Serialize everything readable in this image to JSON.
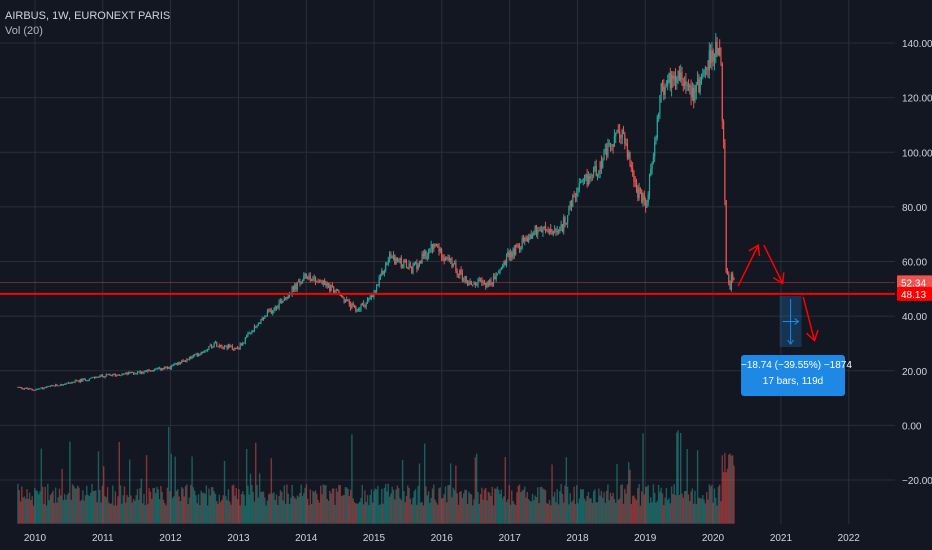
{
  "header": {
    "symbol_line": "AIRBUS, 1W, EURONEXT PARIS",
    "volume_line": "Vol (20)"
  },
  "measure_tooltip": {
    "line1": "−18.74 (−39.55%) −1874",
    "line2": "17 bars, 119d"
  },
  "colors": {
    "background": "#131722",
    "grid": "#2a2e39",
    "up": "#26a69a",
    "down": "#ef5350",
    "annotation": "#ff0000",
    "measure": "#1e88e5"
  },
  "chart_data": {
    "type": "candlestick",
    "title": "AIRBUS, 1W, EURONEXT PARIS",
    "x_axis": {
      "type": "date",
      "range": [
        "2009-10-01",
        "2022-09-01"
      ],
      "tick_labels": [
        "2010",
        "2011",
        "2012",
        "2013",
        "2014",
        "2015",
        "2016",
        "2017",
        "2018",
        "2019",
        "2020",
        "2021",
        "2022"
      ]
    },
    "y_axis": {
      "side": "right",
      "range": [
        -36,
        150
      ],
      "tick_values": [
        140,
        120,
        100,
        80,
        60,
        40,
        20,
        0,
        -20
      ],
      "tick_labels": [
        "140.00",
        "120.00",
        "100.00",
        "80.00",
        "60.00",
        "40.00",
        "20.00",
        "0.00",
        "−20.00"
      ]
    },
    "grid": true,
    "price_path": [
      {
        "date": "2009-10-01",
        "price": 14
      },
      {
        "date": "2010-01-01",
        "price": 13
      },
      {
        "date": "2010-06-01",
        "price": 15
      },
      {
        "date": "2011-01-01",
        "price": 18
      },
      {
        "date": "2011-06-01",
        "price": 19
      },
      {
        "date": "2012-01-01",
        "price": 21
      },
      {
        "date": "2012-06-01",
        "price": 26
      },
      {
        "date": "2012-09-01",
        "price": 30
      },
      {
        "date": "2013-01-01",
        "price": 28
      },
      {
        "date": "2013-06-01",
        "price": 40
      },
      {
        "date": "2013-12-01",
        "price": 52
      },
      {
        "date": "2014-01-15",
        "price": 55
      },
      {
        "date": "2014-06-01",
        "price": 50
      },
      {
        "date": "2014-10-01",
        "price": 42
      },
      {
        "date": "2015-01-01",
        "price": 47
      },
      {
        "date": "2015-04-01",
        "price": 62
      },
      {
        "date": "2015-08-01",
        "price": 57
      },
      {
        "date": "2015-12-01",
        "price": 66
      },
      {
        "date": "2016-06-01",
        "price": 52
      },
      {
        "date": "2016-10-01",
        "price": 52
      },
      {
        "date": "2017-01-01",
        "price": 62
      },
      {
        "date": "2017-06-01",
        "price": 72
      },
      {
        "date": "2017-10-01",
        "price": 70
      },
      {
        "date": "2018-01-01",
        "price": 85
      },
      {
        "date": "2018-05-01",
        "price": 95
      },
      {
        "date": "2018-09-01",
        "price": 108
      },
      {
        "date": "2018-12-01",
        "price": 85
      },
      {
        "date": "2019-01-15",
        "price": 80
      },
      {
        "date": "2019-04-01",
        "price": 122
      },
      {
        "date": "2019-07-01",
        "price": 130
      },
      {
        "date": "2019-10-01",
        "price": 122
      },
      {
        "date": "2020-01-15",
        "price": 138
      },
      {
        "date": "2020-02-20",
        "price": 132
      },
      {
        "date": "2020-03-05",
        "price": 100
      },
      {
        "date": "2020-03-20",
        "price": 53
      },
      {
        "date": "2020-04-25",
        "price": 52.34
      }
    ],
    "volume_overlay": {
      "label": "Vol (20)"
    },
    "price_markers": [
      {
        "value": 52.34,
        "label": "52.34",
        "color": "#ef5350"
      },
      {
        "value": 48.13,
        "label": "48.13",
        "color": "#ff0000"
      }
    ],
    "horizontal_line": {
      "value": 48.13,
      "color": "#ff0000"
    },
    "annotation_arrows": [
      {
        "from": {
          "date": "2020-05-15",
          "price": 51
        },
        "to": {
          "date": "2020-09-01",
          "price": 66
        }
      },
      {
        "from": {
          "date": "2020-10-01",
          "price": 66
        },
        "to": {
          "date": "2021-01-10",
          "price": 52
        }
      },
      {
        "from": {
          "date": "2021-05-01",
          "price": 47
        },
        "to": {
          "date": "2021-07-01",
          "price": 31
        }
      }
    ],
    "measure_box": {
      "start": {
        "date": "2020-12-25",
        "price": 47.4
      },
      "end": {
        "date": "2021-04-22",
        "price": 28.7
      },
      "change": -18.74,
      "change_percent": -39.55,
      "change_ticks": -1874,
      "bars": 17,
      "days": 119
    }
  }
}
